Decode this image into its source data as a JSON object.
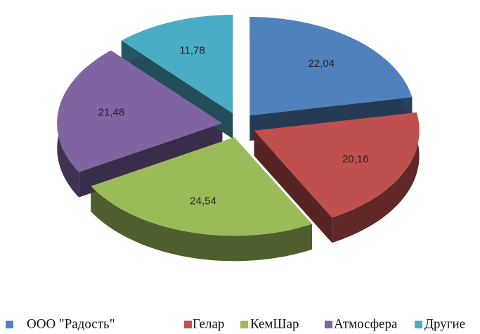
{
  "chart_data": {
    "type": "pie3d",
    "categories": [
      "ООО \"Радость\"",
      "Гелар",
      "КемШар",
      "Атмосфера",
      "Другие"
    ],
    "values": [
      22.04,
      20.16,
      24.54,
      21.48,
      11.78
    ],
    "value_labels": [
      "22,04",
      "20,16",
      "24,54",
      "21,48",
      "11,78"
    ],
    "colors": [
      "#4f81bd",
      "#c0504d",
      "#9bbb59",
      "#8064a2",
      "#4bacc6"
    ],
    "legend": "bottom"
  }
}
